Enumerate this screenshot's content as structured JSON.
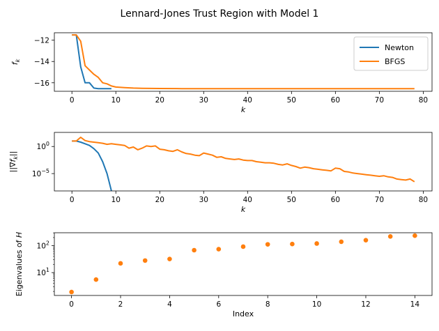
{
  "figure": {
    "title": "Lennard-Jones Trust Region with Model 1"
  },
  "colors": {
    "newton": "#1f77b4",
    "bfgs": "#ff7f0e",
    "eig": "#ff7f0e"
  },
  "chart_data": [
    {
      "type": "line",
      "name": "objective",
      "xlabel": "k",
      "ylabel": "f_k",
      "xlim": [
        -4,
        82
      ],
      "ylim": [
        -16.8,
        -11.3
      ],
      "yscale": "linear",
      "xticks": [
        0,
        10,
        20,
        30,
        40,
        50,
        60,
        70,
        80
      ],
      "yticks": [
        -12,
        -14,
        -16
      ],
      "legend": "top-right",
      "grid": false,
      "series": [
        {
          "name": "Newton",
          "color_key": "newton",
          "x": [
            0,
            1,
            2,
            3,
            4,
            5,
            6,
            7,
            8,
            9
          ],
          "y": [
            -11.5,
            -11.5,
            -14.5,
            -16.0,
            -16.0,
            -16.5,
            -16.55,
            -16.55,
            -16.55,
            -16.55
          ]
        },
        {
          "name": "BFGS",
          "color_key": "bfgs",
          "x": [
            0,
            1,
            2,
            3,
            4,
            5,
            6,
            7,
            8,
            9,
            10,
            12,
            14,
            16,
            18,
            20,
            25,
            30,
            40,
            50,
            60,
            70,
            78
          ],
          "y": [
            -11.5,
            -11.5,
            -12.1,
            -14.4,
            -14.8,
            -15.2,
            -15.5,
            -16.0,
            -16.1,
            -16.3,
            -16.4,
            -16.45,
            -16.5,
            -16.52,
            -16.53,
            -16.54,
            -16.55,
            -16.55,
            -16.55,
            -16.55,
            -16.55,
            -16.55,
            -16.55
          ]
        }
      ]
    },
    {
      "type": "line",
      "name": "gradient-norm",
      "xlabel": "k",
      "ylabel": "||∇f_k||",
      "xlim": [
        -4,
        82
      ],
      "ylim_log10": [
        -8.2,
        2.6
      ],
      "yscale": "log",
      "xticks": [
        0,
        10,
        20,
        30,
        40,
        50,
        60,
        70,
        80
      ],
      "yticks_log10": [
        0,
        -5
      ],
      "grid": false,
      "series": [
        {
          "name": "Newton",
          "color_key": "newton",
          "x": [
            0,
            1,
            2,
            3,
            4,
            5,
            6,
            7,
            8,
            9
          ],
          "log10_y": [
            1.0,
            1.0,
            0.8,
            0.5,
            0.2,
            -0.4,
            -1.2,
            -2.8,
            -5.0,
            -8.2
          ]
        },
        {
          "name": "BFGS",
          "color_key": "bfgs",
          "x": [
            0,
            1,
            2,
            3,
            4,
            5,
            6,
            7,
            8,
            9,
            10,
            11,
            12,
            13,
            14,
            15,
            16,
            17,
            18,
            19,
            20,
            21,
            22,
            23,
            24,
            25,
            26,
            27,
            28,
            29,
            30,
            31,
            32,
            33,
            34,
            35,
            36,
            37,
            38,
            39,
            40,
            41,
            42,
            43,
            44,
            45,
            46,
            47,
            48,
            49,
            50,
            51,
            52,
            53,
            54,
            55,
            56,
            57,
            58,
            59,
            60,
            61,
            62,
            63,
            64,
            65,
            66,
            67,
            68,
            69,
            70,
            71,
            72,
            73,
            74,
            75,
            76,
            77,
            78
          ],
          "log10_y": [
            1.0,
            1.0,
            1.7,
            1.1,
            0.9,
            0.8,
            0.7,
            0.6,
            0.4,
            0.5,
            0.4,
            0.3,
            0.2,
            -0.3,
            -0.1,
            -0.6,
            -0.3,
            0.1,
            0.0,
            0.1,
            -0.5,
            -0.6,
            -0.8,
            -0.9,
            -0.6,
            -1.0,
            -1.3,
            -1.4,
            -1.6,
            -1.7,
            -1.2,
            -1.4,
            -1.6,
            -2.0,
            -1.9,
            -2.2,
            -2.3,
            -2.4,
            -2.3,
            -2.5,
            -2.6,
            -2.6,
            -2.8,
            -2.9,
            -3.0,
            -3.0,
            -3.1,
            -3.3,
            -3.4,
            -3.2,
            -3.5,
            -3.7,
            -4.0,
            -3.8,
            -3.9,
            -4.1,
            -4.2,
            -4.3,
            -4.4,
            -4.5,
            -4.0,
            -4.1,
            -4.6,
            -4.7,
            -4.9,
            -5.0,
            -5.1,
            -5.2,
            -5.3,
            -5.4,
            -5.5,
            -5.4,
            -5.6,
            -5.7,
            -6.0,
            -6.1,
            -6.2,
            -6.0,
            -6.5
          ]
        }
      ]
    },
    {
      "type": "scatter",
      "name": "eigenvalues",
      "xlabel": "Index",
      "ylabel": "Eigenvalues of H",
      "xlim": [
        -0.7,
        14.7
      ],
      "ylim_log10": [
        0.15,
        2.48
      ],
      "yscale": "log",
      "xticks": [
        0,
        2,
        4,
        6,
        8,
        10,
        12,
        14
      ],
      "yticks_log10": [
        1,
        2
      ],
      "grid": false,
      "series": [
        {
          "color_key": "eig",
          "x": [
            0,
            1,
            2,
            3,
            4,
            5,
            6,
            7,
            8,
            9,
            10,
            11,
            12,
            13,
            14
          ],
          "y": [
            1.9,
            5.5,
            22,
            28,
            32,
            68,
            74,
            92,
            112,
            115,
            120,
            140,
            160,
            220,
            235
          ]
        }
      ]
    }
  ]
}
